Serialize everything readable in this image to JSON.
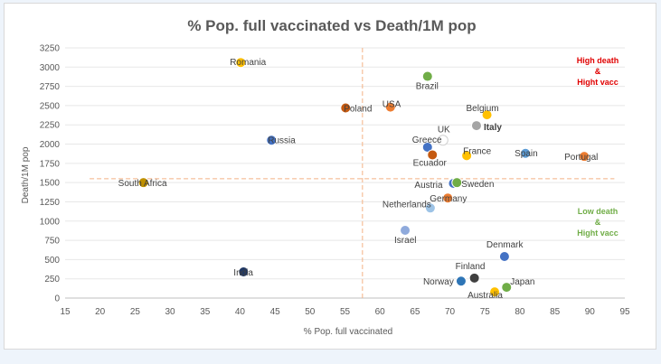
{
  "chart_data": {
    "type": "scatter",
    "title": "% Pop. full vaccinated vs Death/1M pop",
    "xlabel": "% Pop. full vaccinated",
    "ylabel": "Death/1M pop",
    "xlim": [
      15,
      95
    ],
    "ylim": [
      0,
      3250
    ],
    "x_ticks": [
      15,
      20,
      25,
      30,
      35,
      40,
      45,
      50,
      55,
      60,
      65,
      70,
      75,
      80,
      85,
      90,
      95
    ],
    "y_ticks": [
      0,
      250,
      500,
      750,
      1000,
      1250,
      1500,
      1750,
      2000,
      2250,
      2500,
      2750,
      3000,
      3250
    ],
    "grid": "horizontal",
    "reference_lines": {
      "x": 57.5,
      "y": 1550
    },
    "quadrant_labels": [
      {
        "lines": [
          "High death",
          "&",
          "Hight vacc"
        ],
        "color": "#e00000"
      },
      {
        "lines": [
          "Low death",
          "&",
          "Hight vacc"
        ],
        "color": "#70ad47"
      }
    ],
    "points": [
      {
        "label": "Romania",
        "x": 40.1,
        "y": 3060,
        "color": "#ffc000"
      },
      {
        "label": "Brazil",
        "x": 66.8,
        "y": 2880,
        "color": "#70ad47"
      },
      {
        "label": "Poland",
        "x": 55.1,
        "y": 2470,
        "color": "#c55a11"
      },
      {
        "label": "USA",
        "x": 61.5,
        "y": 2480,
        "color": "#ed7d31"
      },
      {
        "label": "Belgium",
        "x": 75.3,
        "y": 2380,
        "color": "#ffc000"
      },
      {
        "label": "Italy",
        "x": 73.8,
        "y": 2240,
        "color": "#a5a5a5",
        "bold": true
      },
      {
        "label": "Russia",
        "x": 44.5,
        "y": 2050,
        "color": "#4472c4"
      },
      {
        "label": "UK",
        "x": 69.0,
        "y": 2050,
        "color": "#ffffff"
      },
      {
        "label": "Greece",
        "x": 66.8,
        "y": 1960,
        "color": "#4472c4"
      },
      {
        "label": "Ecuador",
        "x": 67.5,
        "y": 1860,
        "color": "#c55a11"
      },
      {
        "label": "France",
        "x": 72.4,
        "y": 1850,
        "color": "#ffc000"
      },
      {
        "label": "Spain",
        "x": 80.8,
        "y": 1880,
        "color": "#5b9bd5"
      },
      {
        "label": "Portugal",
        "x": 89.2,
        "y": 1840,
        "color": "#ed7d31"
      },
      {
        "label": "South Africa",
        "x": 26.2,
        "y": 1500,
        "color": "#bf9000"
      },
      {
        "label": "Austria",
        "x": 70.5,
        "y": 1490,
        "color": "#4472c4"
      },
      {
        "label": "Sweden",
        "x": 71.0,
        "y": 1500,
        "color": "#70ad47"
      },
      {
        "label": "Germany",
        "x": 69.7,
        "y": 1300,
        "color": "#ed7d31"
      },
      {
        "label": "Netherlands",
        "x": 67.2,
        "y": 1170,
        "color": "#9dc3e6"
      },
      {
        "label": "Israel",
        "x": 63.6,
        "y": 880,
        "color": "#8faadc"
      },
      {
        "label": "Denmark",
        "x": 77.8,
        "y": 540,
        "color": "#4472c4"
      },
      {
        "label": "India",
        "x": 40.5,
        "y": 340,
        "color": "#203864"
      },
      {
        "label": "Finland",
        "x": 73.5,
        "y": 260,
        "color": "#404040"
      },
      {
        "label": "Norway",
        "x": 71.6,
        "y": 220,
        "color": "#2e75b6"
      },
      {
        "label": "Japan",
        "x": 78.1,
        "y": 140,
        "color": "#70ad47"
      },
      {
        "label": "Australia",
        "x": 76.4,
        "y": 80,
        "color": "#ffc000"
      }
    ]
  }
}
